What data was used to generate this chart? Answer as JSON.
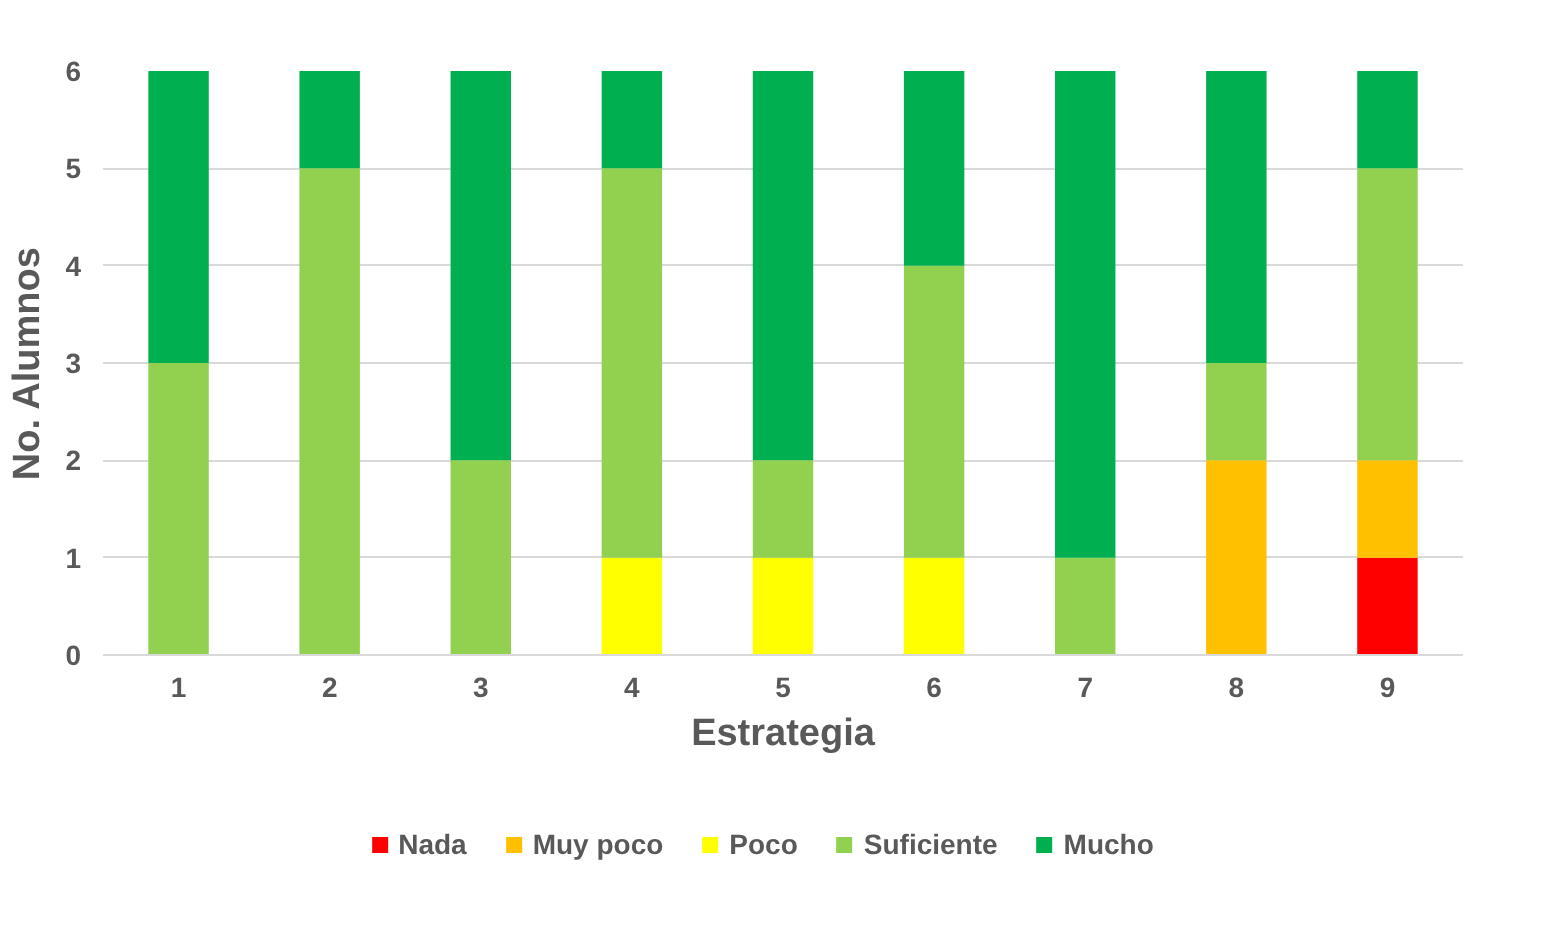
{
  "chart_data": {
    "type": "bar",
    "stacked": true,
    "xlabel": "Estrategia",
    "ylabel": "No. Alumnos",
    "categories": [
      "1",
      "2",
      "3",
      "4",
      "5",
      "6",
      "7",
      "8",
      "9"
    ],
    "series": [
      {
        "name": "Nada",
        "color": "#ff0000",
        "values": [
          0,
          0,
          0,
          0,
          0,
          0,
          0,
          0,
          1
        ]
      },
      {
        "name": "Muy poco",
        "color": "#ffc000",
        "values": [
          0,
          0,
          0,
          0,
          0,
          0,
          0,
          2,
          1
        ]
      },
      {
        "name": "Poco",
        "color": "#ffff00",
        "values": [
          0,
          0,
          0,
          1,
          1,
          1,
          0,
          0,
          0
        ]
      },
      {
        "name": "Suficiente",
        "color": "#92d050",
        "values": [
          3,
          5,
          2,
          4,
          1,
          3,
          1,
          1,
          3
        ]
      },
      {
        "name": "Mucho",
        "color": "#00b050",
        "values": [
          3,
          1,
          4,
          1,
          4,
          2,
          5,
          3,
          1
        ]
      }
    ],
    "ylim": [
      0,
      6
    ],
    "yticks": [
      0,
      1,
      2,
      3,
      4,
      5,
      6
    ],
    "grid": "y",
    "legend": "bottom"
  }
}
